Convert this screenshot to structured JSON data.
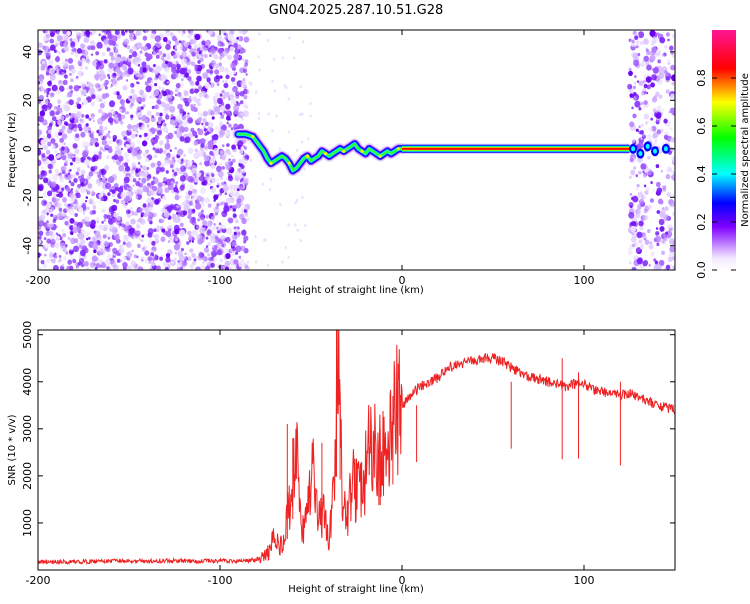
{
  "title": "GN04.2025.287.10.51.G28",
  "chart_data": [
    {
      "type": "heatmap",
      "name": "spectrogram",
      "xlabel": "Height of straight line (km)",
      "ylabel": "Frequency (Hz)",
      "xlim": [
        -200,
        150
      ],
      "ylim": [
        -50,
        49
      ],
      "xticks": [
        -200,
        -100,
        0,
        100
      ],
      "yticks": [
        -40,
        -20,
        0,
        20,
        40
      ],
      "colorbar": {
        "label": "Normalized spectral amplitude",
        "range": [
          0,
          1
        ],
        "ticks": [
          0.0,
          0.2,
          0.4,
          0.6,
          0.8
        ]
      },
      "trace": [
        [
          -90,
          6
        ],
        [
          -86,
          6
        ],
        [
          -82,
          5
        ],
        [
          -80,
          3
        ],
        [
          -78,
          1
        ],
        [
          -76,
          -1
        ],
        [
          -74,
          -4
        ],
        [
          -72,
          -6
        ],
        [
          -70,
          -5
        ],
        [
          -68,
          -4
        ],
        [
          -66,
          -3
        ],
        [
          -64,
          -4
        ],
        [
          -62,
          -6
        ],
        [
          -60,
          -9
        ],
        [
          -58,
          -8
        ],
        [
          -56,
          -6
        ],
        [
          -54,
          -4
        ],
        [
          -52,
          -3
        ],
        [
          -50,
          -5
        ],
        [
          -48,
          -4
        ],
        [
          -46,
          -3
        ],
        [
          -44,
          -1
        ],
        [
          -42,
          -2
        ],
        [
          -40,
          -3
        ],
        [
          -38,
          -2
        ],
        [
          -36,
          -1
        ],
        [
          -34,
          0
        ],
        [
          -32,
          -1
        ],
        [
          -30,
          0
        ],
        [
          -28,
          1
        ],
        [
          -26,
          2
        ],
        [
          -24,
          0
        ],
        [
          -22,
          -1
        ],
        [
          -20,
          -2
        ],
        [
          -18,
          0
        ],
        [
          -16,
          -1
        ],
        [
          -14,
          -2
        ],
        [
          -12,
          -3
        ],
        [
          -10,
          -2
        ],
        [
          -8,
          -1
        ],
        [
          -6,
          -2
        ],
        [
          -4,
          -1
        ],
        [
          -2,
          0
        ],
        [
          0,
          0
        ]
      ],
      "carrier": {
        "x_start": 0,
        "x_end": 125,
        "frequency": 0
      },
      "noise_regions": [
        [
          -200,
          -85
        ],
        [
          125,
          150
        ]
      ]
    },
    {
      "type": "line",
      "name": "snr",
      "xlabel": "Height of straight line (km)",
      "ylabel": "SNR (10 * v/v)",
      "xlim": [
        -200,
        150
      ],
      "ylim": [
        0,
        5100
      ],
      "xticks": [
        -200,
        -100,
        0,
        100
      ],
      "yticks": [
        1000,
        2000,
        3000,
        4000,
        5000
      ],
      "series": [
        {
          "name": "SNR",
          "color": "#ee2222",
          "x": [
            -200,
            -190,
            -180,
            -170,
            -160,
            -150,
            -140,
            -130,
            -120,
            -110,
            -100,
            -90,
            -85,
            -80,
            -76,
            -73,
            -70,
            -67,
            -64,
            -61,
            -58,
            -55,
            -52,
            -49,
            -46,
            -43,
            -40,
            -37,
            -35,
            -33,
            -30,
            -27,
            -24,
            -21,
            -18,
            -15,
            -12,
            -9,
            -6,
            -3,
            0,
            5,
            10,
            15,
            20,
            25,
            30,
            35,
            40,
            45,
            50,
            55,
            60,
            65,
            70,
            75,
            80,
            85,
            90,
            95,
            100,
            105,
            110,
            115,
            120,
            125,
            130,
            135,
            140,
            145,
            150
          ],
          "values": [
            180,
            170,
            175,
            180,
            190,
            185,
            190,
            200,
            195,
            190,
            195,
            190,
            200,
            220,
            280,
            400,
            700,
            500,
            900,
            1500,
            2400,
            700,
            1300,
            2000,
            1000,
            1200,
            600,
            1800,
            4800,
            1600,
            1100,
            1900,
            1600,
            1800,
            2600,
            2500,
            2300,
            2700,
            2900,
            3300,
            3500,
            3700,
            3900,
            4000,
            4100,
            4300,
            4350,
            4400,
            4450,
            4500,
            4500,
            4450,
            4300,
            4200,
            4100,
            4050,
            4000,
            3950,
            3900,
            3950,
            3950,
            3850,
            3800,
            3750,
            3700,
            3750,
            3650,
            3600,
            3500,
            3450,
            3400
          ],
          "spikes": [
            [
              -63,
              3100
            ],
            [
              -60,
              2800
            ],
            [
              -44,
              2700
            ],
            [
              -36,
              5100
            ],
            [
              -34,
              3800
            ],
            [
              -12,
              3000
            ],
            [
              -5,
              3700
            ],
            [
              8,
              3500
            ],
            [
              60,
              4000
            ],
            [
              88,
              4500
            ],
            [
              97,
              4200
            ],
            [
              120,
              4000
            ]
          ]
        }
      ]
    }
  ]
}
